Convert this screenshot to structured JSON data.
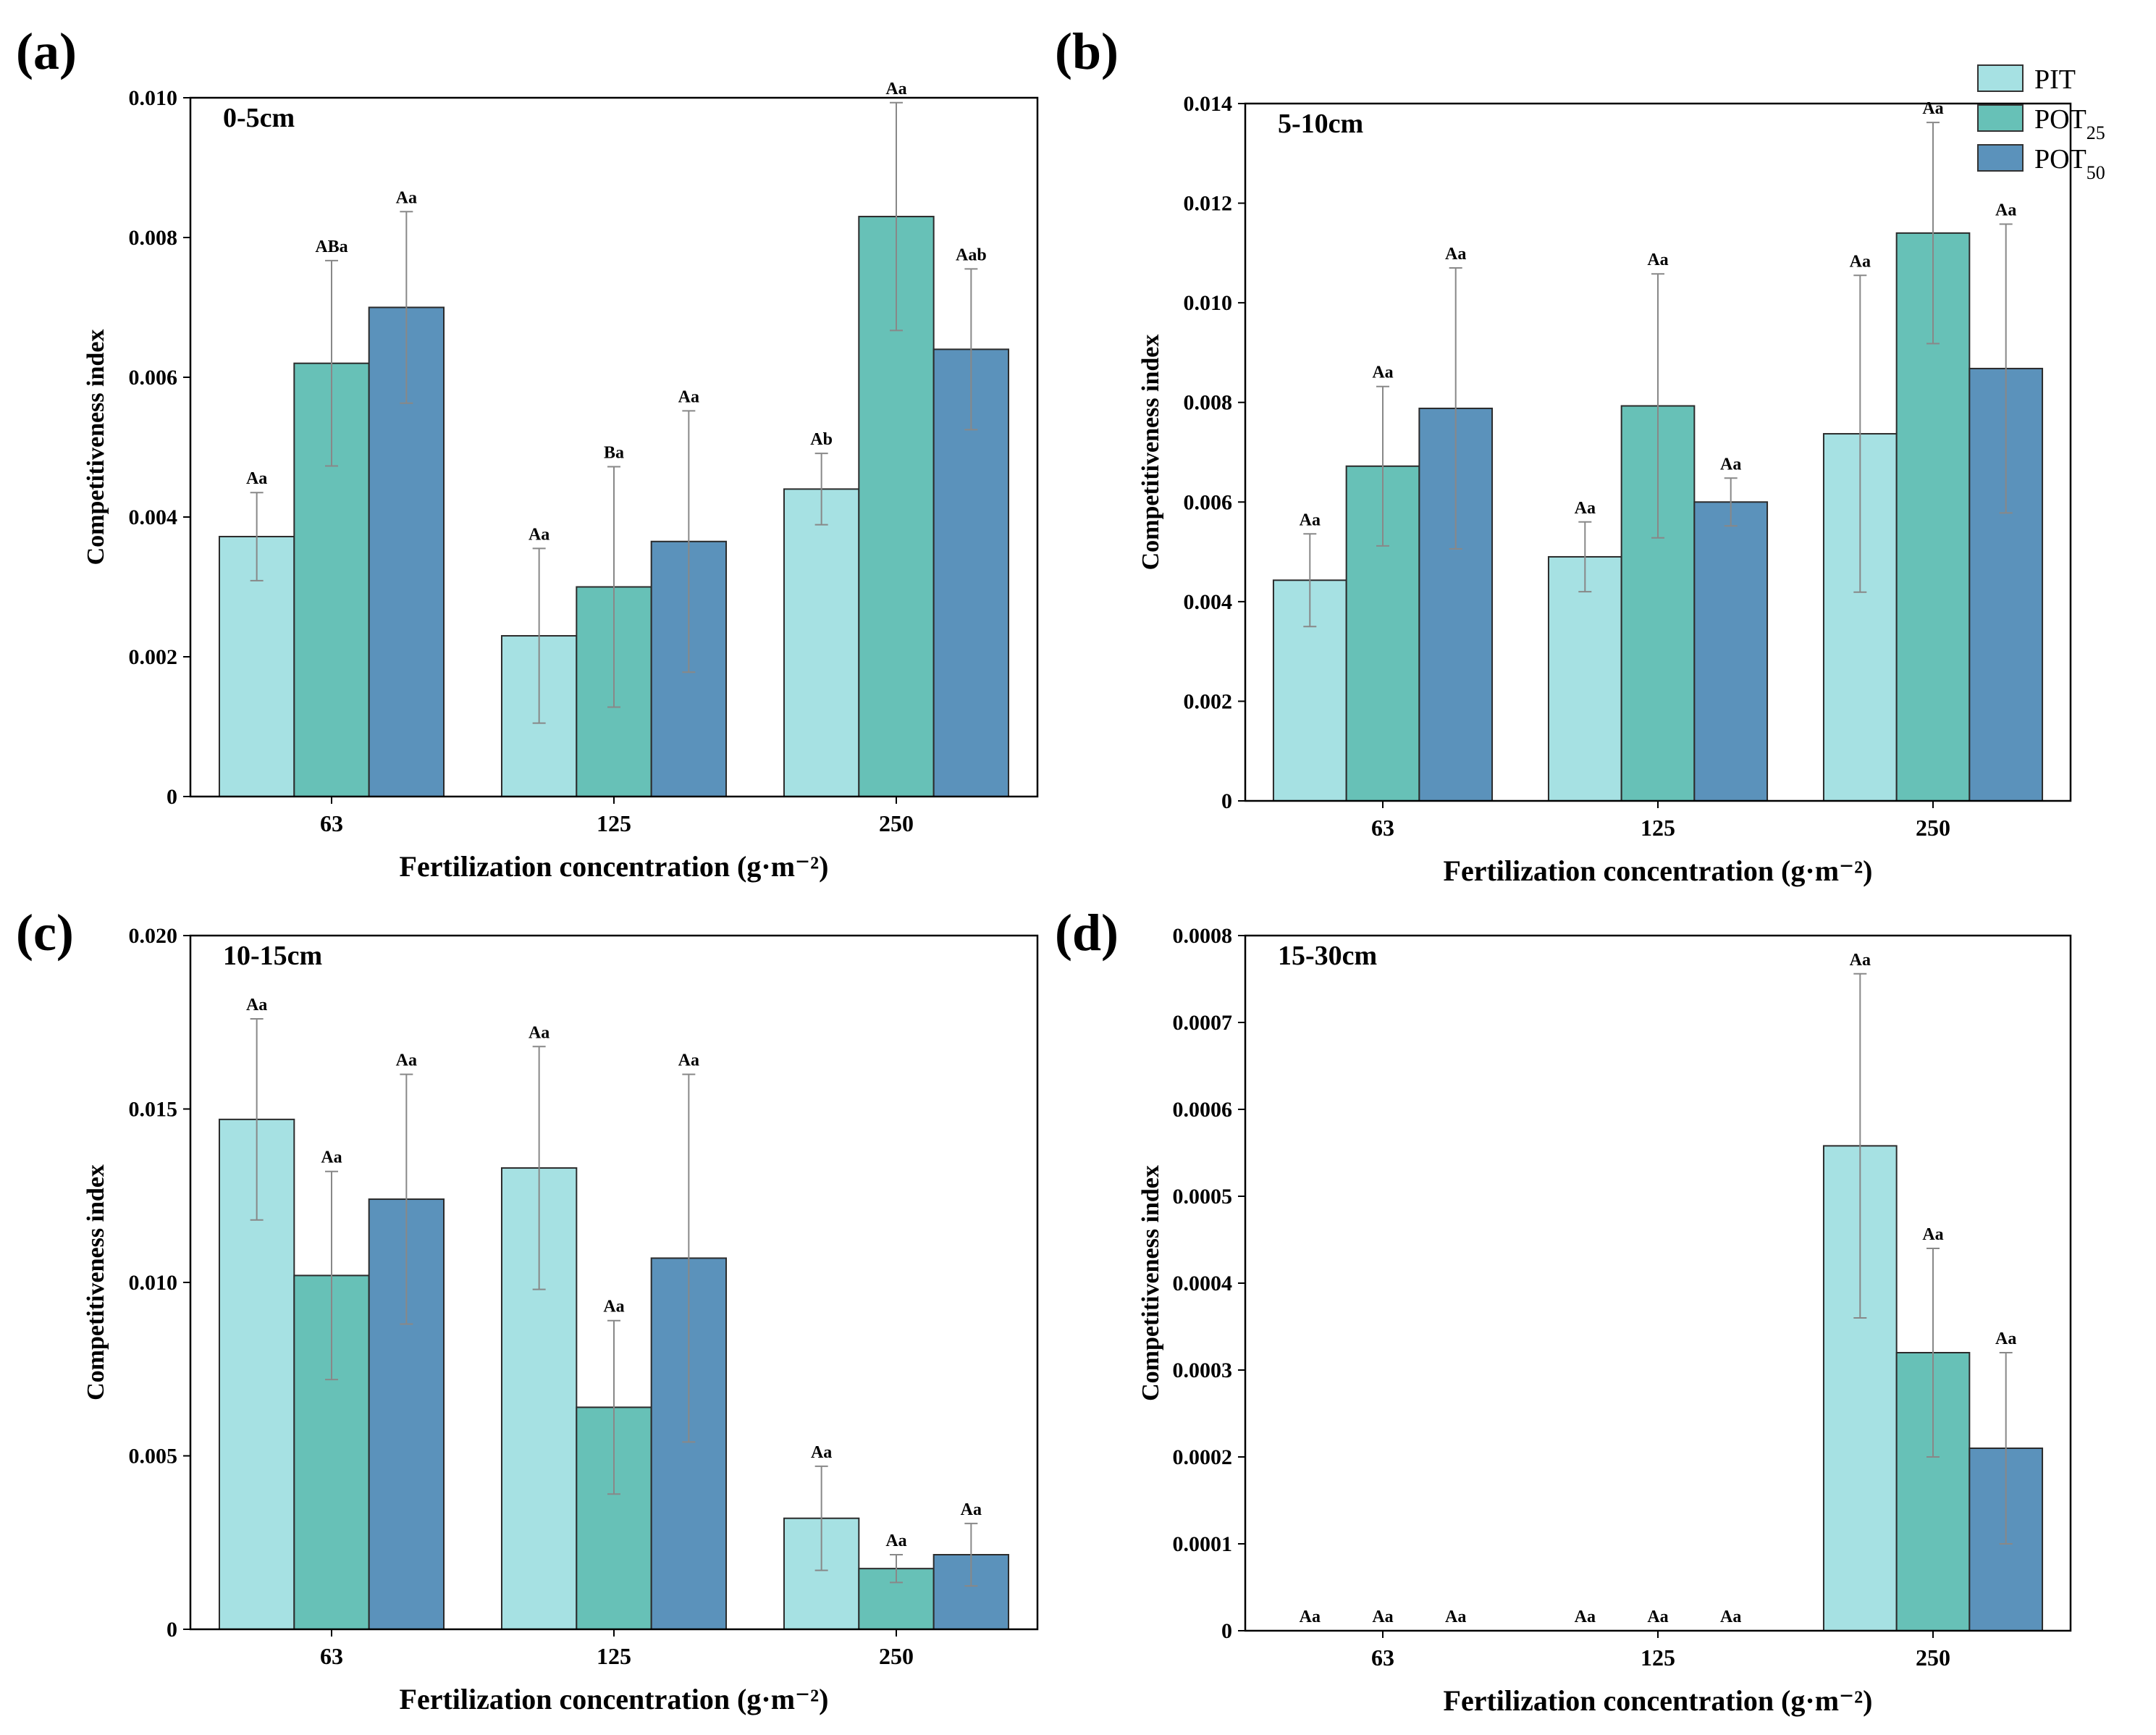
{
  "colors": {
    "PIT": "#a6e1e3",
    "POT25": "#67c1b7",
    "POT50": "#5b92bb"
  },
  "legend": [
    {
      "key": "PIT",
      "base": "PIT",
      "sub": ""
    },
    {
      "key": "POT25",
      "base": "POT",
      "sub": "25"
    },
    {
      "key": "POT50",
      "base": "POT",
      "sub": "50"
    }
  ],
  "chart_data": [
    {
      "type": "bar",
      "panel": "(a)",
      "label": "0-5cm",
      "xlabel": "Fertilization concentration (g·m⁻²)",
      "ylabel": "Competitiveness index",
      "categories": [
        "63",
        "125",
        "250"
      ],
      "ylim": [
        0,
        0.01
      ],
      "yticks": [
        "0",
        "0.002",
        "0.004",
        "0.006",
        "0.008",
        "0.010"
      ],
      "series": [
        {
          "name": "PIT",
          "values": [
            0.00372,
            0.0023,
            0.0044
          ],
          "errors": [
            0.00063,
            0.00125,
            0.00051
          ],
          "letters": [
            "Aa",
            "Aa",
            "Ab"
          ]
        },
        {
          "name": "POT25",
          "values": [
            0.0062,
            0.003,
            0.0083
          ],
          "errors": [
            0.00147,
            0.00172,
            0.00163
          ],
          "letters": [
            "ABa",
            "Ba",
            "Aa"
          ]
        },
        {
          "name": "POT50",
          "values": [
            0.007,
            0.00365,
            0.0064
          ],
          "errors": [
            0.00137,
            0.00187,
            0.00115
          ],
          "letters": [
            "Aa",
            "Aa",
            "Aab"
          ]
        }
      ]
    },
    {
      "type": "bar",
      "panel": "(b)",
      "label": "5-10cm",
      "xlabel": "Fertilization concentration (g·m⁻²)",
      "ylabel": "Competitiveness index",
      "categories": [
        "63",
        "125",
        "250"
      ],
      "ylim": [
        0,
        0.014
      ],
      "yticks": [
        "0",
        "0.002",
        "0.004",
        "0.006",
        "0.008",
        "0.010",
        "0.012",
        "0.014"
      ],
      "series": [
        {
          "name": "PIT",
          "values": [
            0.00443,
            0.0049,
            0.00737
          ],
          "errors": [
            0.00093,
            0.0007,
            0.00318
          ],
          "letters": [
            "Aa",
            "Aa",
            "Aa"
          ]
        },
        {
          "name": "POT25",
          "values": [
            0.00672,
            0.00793,
            0.0114
          ],
          "errors": [
            0.0016,
            0.00265,
            0.00222
          ],
          "letters": [
            "Aa",
            "Aa",
            "Aa"
          ]
        },
        {
          "name": "POT50",
          "values": [
            0.00788,
            0.006,
            0.00868
          ],
          "errors": [
            0.00282,
            0.00048,
            0.0029
          ],
          "letters": [
            "Aa",
            "Aa",
            "Aa"
          ]
        }
      ]
    },
    {
      "type": "bar",
      "panel": "(c)",
      "label": "10-15cm",
      "xlabel": "Fertilization concentration (g·m⁻²)",
      "ylabel": "Competitiveness index",
      "categories": [
        "63",
        "125",
        "250"
      ],
      "ylim": [
        0,
        0.02
      ],
      "yticks": [
        "0",
        "0.005",
        "0.010",
        "0.015",
        "0.020"
      ],
      "series": [
        {
          "name": "PIT",
          "values": [
            0.0147,
            0.0133,
            0.0032
          ],
          "errors": [
            0.0029,
            0.0035,
            0.0015
          ],
          "letters": [
            "Aa",
            "Aa",
            "Aa"
          ]
        },
        {
          "name": "POT25",
          "values": [
            0.0102,
            0.0064,
            0.00175
          ],
          "errors": [
            0.003,
            0.0025,
            0.0004
          ],
          "letters": [
            "Aa",
            "Aa",
            "Aa"
          ]
        },
        {
          "name": "POT50",
          "values": [
            0.0124,
            0.0107,
            0.00215
          ],
          "errors": [
            0.0036,
            0.0053,
            0.0009
          ],
          "letters": [
            "Aa",
            "Aa",
            "Aa"
          ]
        }
      ]
    },
    {
      "type": "bar",
      "panel": "(d)",
      "label": "15-30cm",
      "xlabel": "Fertilization concentration (g·m⁻²)",
      "ylabel": "Competitiveness index",
      "categories": [
        "63",
        "125",
        "250"
      ],
      "ylim": [
        0,
        0.0008
      ],
      "yticks": [
        "0",
        "0.0001",
        "0.0002",
        "0.0003",
        "0.0004",
        "0.0005",
        "0.0006",
        "0.0007",
        "0.0008"
      ],
      "series": [
        {
          "name": "PIT",
          "values": [
            0,
            0,
            0.000558
          ],
          "errors": [
            0,
            0,
            0.000198
          ],
          "letters": [
            "Aa",
            "Aa",
            "Aa"
          ]
        },
        {
          "name": "POT25",
          "values": [
            0,
            0,
            0.00032
          ],
          "errors": [
            0,
            0,
            0.00012
          ],
          "letters": [
            "Aa",
            "Aa",
            "Aa"
          ]
        },
        {
          "name": "POT50",
          "values": [
            0,
            0,
            0.00021
          ],
          "errors": [
            0,
            0,
            0.00011
          ],
          "letters": [
            "Aa",
            "Aa",
            "Aa"
          ]
        }
      ]
    }
  ]
}
